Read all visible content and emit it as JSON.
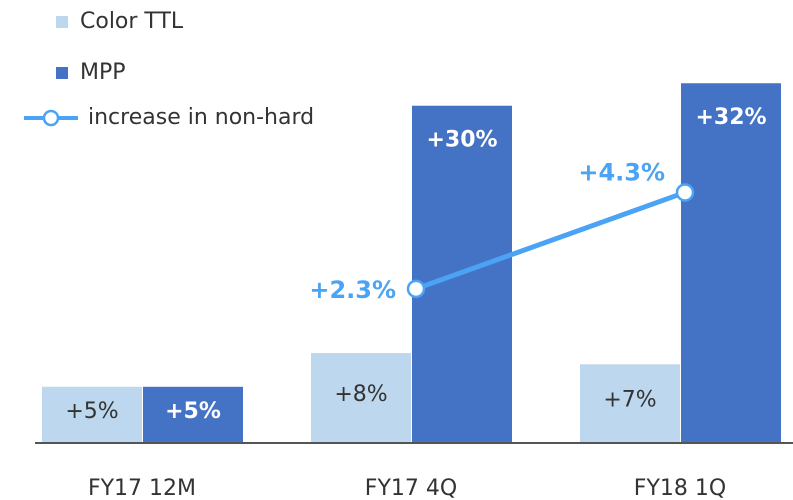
{
  "chart_data": {
    "type": "bar",
    "categories": [
      "FY17 12M",
      "FY17 4Q",
      "FY18 1Q"
    ],
    "series": [
      {
        "name": "Color TTL",
        "color": "#bdd7ee",
        "values": [
          5,
          8,
          7
        ],
        "value_labels": [
          "+5%",
          "+8%",
          "+7%"
        ]
      },
      {
        "name": "MPP",
        "color": "#4472c4",
        "values": [
          5,
          30,
          32
        ],
        "value_labels": [
          "+5%",
          "+30%",
          "+32%"
        ]
      },
      {
        "name": "increase in non-hard",
        "type": "line",
        "axis": "y2",
        "color": "#4aa3f5",
        "values": [
          null,
          2.3,
          4.3
        ],
        "value_labels": [
          null,
          "+2.3%",
          "+4.3%"
        ]
      }
    ],
    "ylim": [
      0,
      33
    ],
    "y2lim": [
      -0.9,
      6.8
    ]
  }
}
